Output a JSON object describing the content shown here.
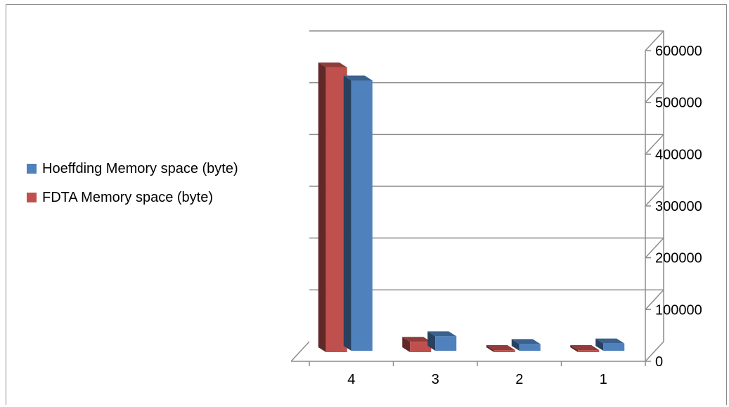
{
  "chart_data": {
    "type": "bar",
    "subtype": "3d-clustered-column",
    "categories": [
      "4",
      "3",
      "2",
      "1"
    ],
    "series": [
      {
        "name": "Hoeffding   Memory space (byte)",
        "color": "#4f81bd",
        "values": [
          522000,
          28000,
          13000,
          14000
        ]
      },
      {
        "name": "FDTA  Memory space (byte)",
        "color": "#c0504d",
        "values": [
          550000,
          20000,
          4000,
          4000
        ]
      }
    ],
    "ylim": [
      0,
      600000
    ],
    "yticks": [
      "0",
      "100000",
      "200000",
      "300000",
      "400000",
      "500000",
      "600000"
    ],
    "y_axis_side": "right",
    "grid": true,
    "legend_position": "left"
  }
}
